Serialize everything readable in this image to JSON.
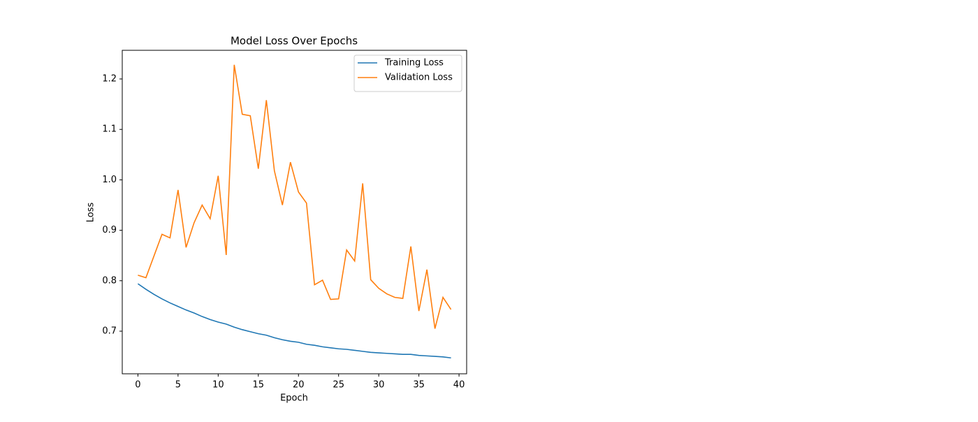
{
  "chart_data": {
    "type": "line",
    "title": "Model Loss Over Epochs",
    "x_label": "Epoch",
    "y_label": "Loss",
    "x": [
      0,
      1,
      2,
      3,
      4,
      5,
      6,
      7,
      8,
      9,
      10,
      11,
      12,
      13,
      14,
      15,
      16,
      17,
      18,
      19,
      20,
      21,
      22,
      23,
      24,
      25,
      26,
      27,
      28,
      29,
      30,
      31,
      32,
      33,
      34,
      35,
      36,
      37,
      38,
      39
    ],
    "series": [
      {
        "name": "Training Loss",
        "color": "#1f77b4",
        "values": [
          0.794,
          0.783,
          0.773,
          0.764,
          0.756,
          0.749,
          0.742,
          0.736,
          0.729,
          0.723,
          0.718,
          0.714,
          0.708,
          0.703,
          0.699,
          0.695,
          0.692,
          0.687,
          0.683,
          0.68,
          0.678,
          0.674,
          0.672,
          0.669,
          0.667,
          0.665,
          0.664,
          0.662,
          0.66,
          0.658,
          0.657,
          0.656,
          0.655,
          0.654,
          0.654,
          0.652,
          0.651,
          0.65,
          0.649,
          0.647
        ]
      },
      {
        "name": "Validation Loss",
        "color": "#ff7f0e",
        "values": [
          0.811,
          0.806,
          0.849,
          0.892,
          0.885,
          0.98,
          0.866,
          0.915,
          0.95,
          0.923,
          1.008,
          0.851,
          1.228,
          1.13,
          1.127,
          1.022,
          1.158,
          1.018,
          0.95,
          1.035,
          0.976,
          0.954,
          0.792,
          0.801,
          0.763,
          0.764,
          0.861,
          0.839,
          0.993,
          0.802,
          0.785,
          0.774,
          0.767,
          0.765,
          0.868,
          0.74,
          0.822,
          0.705,
          0.767,
          0.743
        ]
      }
    ],
    "xlim": [
      -1.95,
      40.95
    ],
    "ylim": [
      0.6155,
      1.2568
    ],
    "xticks": [
      0,
      5,
      10,
      15,
      20,
      25,
      30,
      35,
      40
    ],
    "yticks": [
      {
        "value": 0.7,
        "label": "0.7"
      },
      {
        "value": 0.8,
        "label": "0.8"
      },
      {
        "value": 0.9,
        "label": "0.9"
      },
      {
        "value": 1.0,
        "label": "1.0"
      },
      {
        "value": 1.1,
        "label": "1.1"
      },
      {
        "value": 1.2,
        "label": "1.2"
      }
    ],
    "grid": false,
    "legend": "upper right"
  }
}
